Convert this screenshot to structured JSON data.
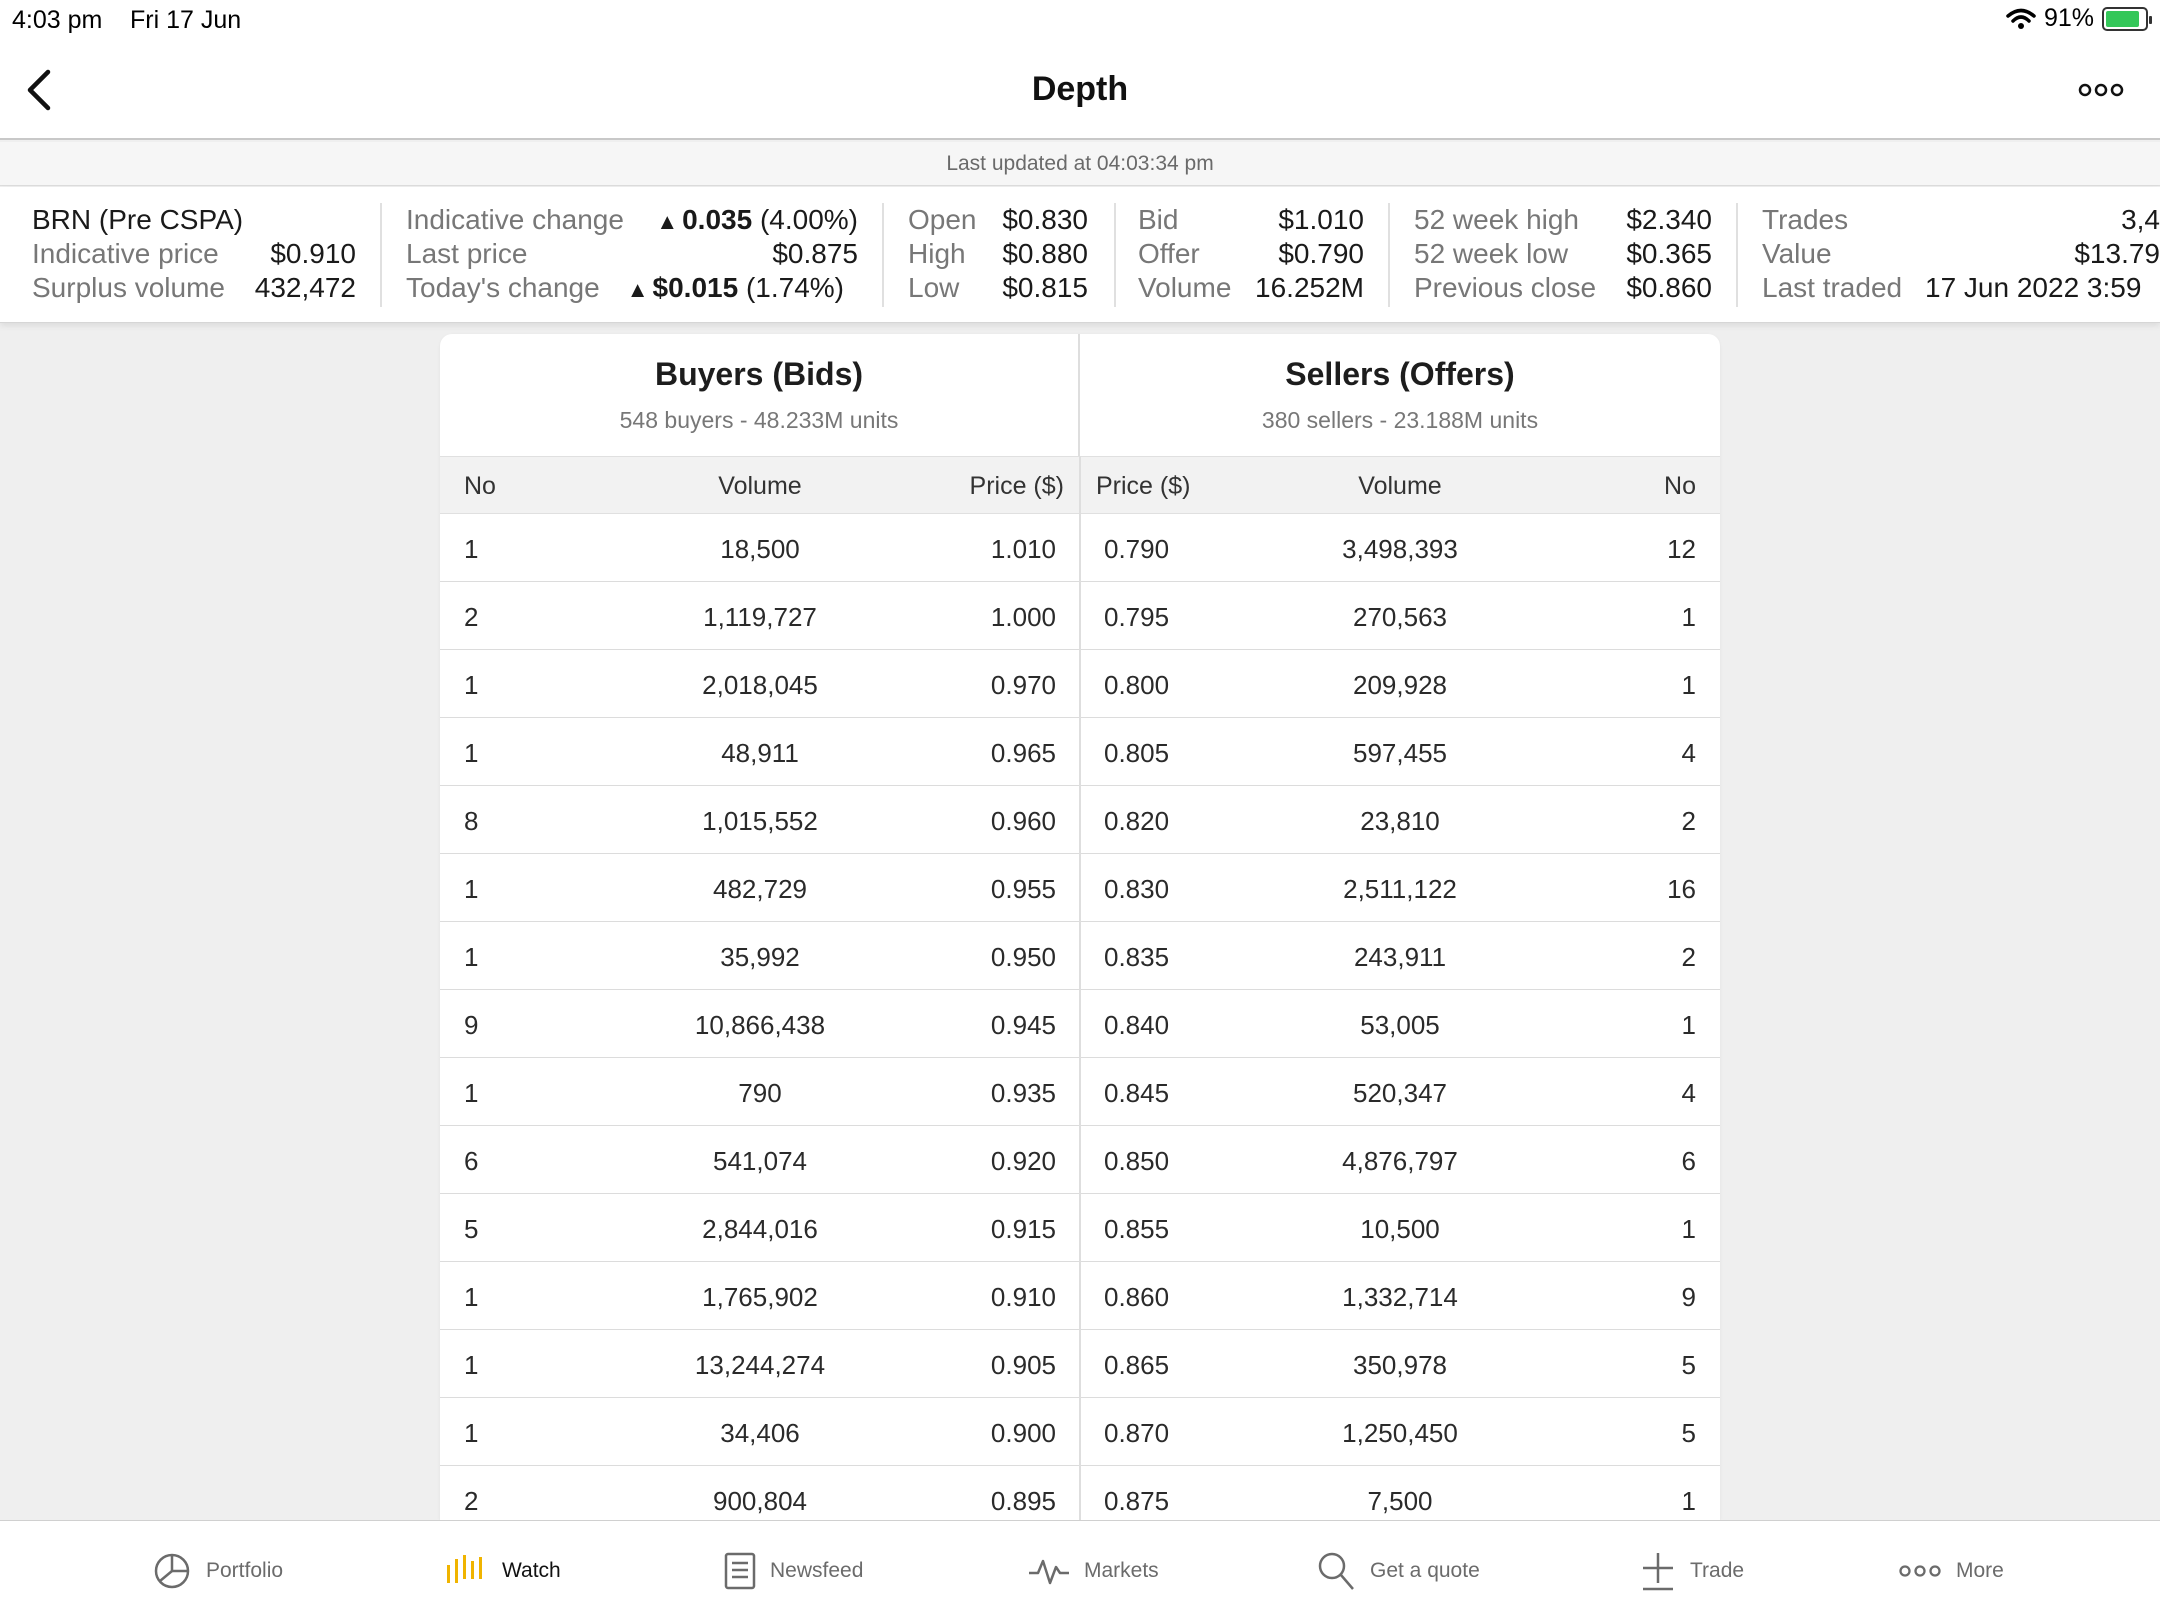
{
  "status": {
    "time": "4:03 pm",
    "date": "Fri 17 Jun",
    "battery": "91%"
  },
  "nav": {
    "title": "Depth"
  },
  "updated": "Last updated at 04:03:34 pm",
  "summary": {
    "col1": {
      "name": "BRN (Pre CSPA)",
      "ind_price_label": "Indicative price",
      "ind_price": "$0.910",
      "surplus_label": "Surplus volume",
      "surplus": "432,472"
    },
    "col2": {
      "ind_change_label": "Indicative change",
      "ind_change_value": "0.035",
      "ind_change_pct": "(4.00%)",
      "last_label": "Last price",
      "last": "$0.875",
      "today_label": "Today's change",
      "today_value": "$0.015",
      "today_pct": "(1.74%)"
    },
    "col3": {
      "open_label": "Open",
      "open": "$0.830",
      "high_label": "High",
      "high": "$0.880",
      "low_label": "Low",
      "low": "$0.815"
    },
    "col4": {
      "bid_label": "Bid",
      "bid": "$1.010",
      "offer_label": "Offer",
      "offer": "$0.790",
      "volume_label": "Volume",
      "volume": "16.252M"
    },
    "col5": {
      "wk_high_label": "52 week high",
      "wk_high": "$2.340",
      "wk_low_label": "52 week low",
      "wk_low": "$0.365",
      "prev_label": "Previous close",
      "prev": "$0.860"
    },
    "col6": {
      "trades_label": "Trades",
      "trades": "3,4",
      "value_label": "Value",
      "value": "$13.79",
      "last_traded_label": "Last traded",
      "last_traded": "17 Jun 2022 3:59"
    },
    "colors": {
      "positive": "#1a8a3a"
    }
  },
  "depth": {
    "buyers": {
      "title": "Buyers (Bids)",
      "subtitle": "548 buyers - 48.233M units"
    },
    "sellers": {
      "title": "Sellers (Offers)",
      "subtitle": "380 sellers - 23.188M units"
    },
    "columns": {
      "no": "No",
      "volume": "Volume",
      "bprice": "Price ($)",
      "sprice": "Price ($)",
      "svolume": "Volume",
      "sno": "No"
    },
    "rows": [
      {
        "bno": "1",
        "bvol": "18,500",
        "bprice": "1.010",
        "sprice": "0.790",
        "svol": "3,498,393",
        "sno": "12"
      },
      {
        "bno": "2",
        "bvol": "1,119,727",
        "bprice": "1.000",
        "sprice": "0.795",
        "svol": "270,563",
        "sno": "1"
      },
      {
        "bno": "1",
        "bvol": "2,018,045",
        "bprice": "0.970",
        "sprice": "0.800",
        "svol": "209,928",
        "sno": "1"
      },
      {
        "bno": "1",
        "bvol": "48,911",
        "bprice": "0.965",
        "sprice": "0.805",
        "svol": "597,455",
        "sno": "4"
      },
      {
        "bno": "8",
        "bvol": "1,015,552",
        "bprice": "0.960",
        "sprice": "0.820",
        "svol": "23,810",
        "sno": "2"
      },
      {
        "bno": "1",
        "bvol": "482,729",
        "bprice": "0.955",
        "sprice": "0.830",
        "svol": "2,511,122",
        "sno": "16"
      },
      {
        "bno": "1",
        "bvol": "35,992",
        "bprice": "0.950",
        "sprice": "0.835",
        "svol": "243,911",
        "sno": "2"
      },
      {
        "bno": "9",
        "bvol": "10,866,438",
        "bprice": "0.945",
        "sprice": "0.840",
        "svol": "53,005",
        "sno": "1"
      },
      {
        "bno": "1",
        "bvol": "790",
        "bprice": "0.935",
        "sprice": "0.845",
        "svol": "520,347",
        "sno": "4"
      },
      {
        "bno": "6",
        "bvol": "541,074",
        "bprice": "0.920",
        "sprice": "0.850",
        "svol": "4,876,797",
        "sno": "6"
      },
      {
        "bno": "5",
        "bvol": "2,844,016",
        "bprice": "0.915",
        "sprice": "0.855",
        "svol": "10,500",
        "sno": "1"
      },
      {
        "bno": "1",
        "bvol": "1,765,902",
        "bprice": "0.910",
        "sprice": "0.860",
        "svol": "1,332,714",
        "sno": "9"
      },
      {
        "bno": "1",
        "bvol": "13,244,274",
        "bprice": "0.905",
        "sprice": "0.865",
        "svol": "350,978",
        "sno": "5"
      },
      {
        "bno": "1",
        "bvol": "34,406",
        "bprice": "0.900",
        "sprice": "0.870",
        "svol": "1,250,450",
        "sno": "5"
      },
      {
        "bno": "2",
        "bvol": "900,804",
        "bprice": "0.895",
        "sprice": "0.875",
        "svol": "7,500",
        "sno": "1"
      }
    ]
  },
  "tabs": [
    {
      "label": "Portfolio",
      "icon": "pie-chart-icon",
      "active": false
    },
    {
      "label": "Watch",
      "icon": "watch-bars-icon",
      "active": true
    },
    {
      "label": "Newsfeed",
      "icon": "document-icon",
      "active": false
    },
    {
      "label": "Markets",
      "icon": "pulse-icon",
      "active": false
    },
    {
      "label": "Get a quote",
      "icon": "search-icon",
      "active": false
    },
    {
      "label": "Trade",
      "icon": "plus-icon",
      "active": false
    },
    {
      "label": "More",
      "icon": "more-dots-icon",
      "active": false
    }
  ]
}
